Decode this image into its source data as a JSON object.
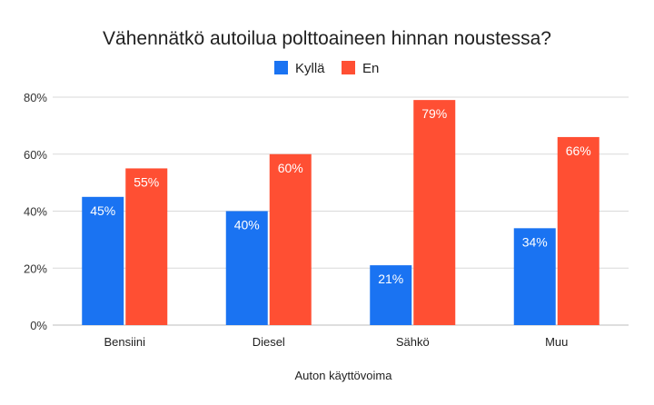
{
  "chart_data": {
    "type": "bar",
    "title": "Vähennätkö autoilua polttoaineen hinnan noustessa?",
    "xlabel": "Auton käyttövoima",
    "ylabel": "",
    "categories": [
      "Bensiini",
      "Diesel",
      "Sähkö",
      "Muu"
    ],
    "series": [
      {
        "name": "Kyllä",
        "color": "#1a73f2",
        "values": [
          45,
          40,
          21,
          34
        ],
        "labels": [
          "45%",
          "40%",
          "21%",
          "34%"
        ]
      },
      {
        "name": "En",
        "color": "#ff4f33",
        "values": [
          55,
          60,
          79,
          66
        ],
        "labels": [
          "55%",
          "60%",
          "79%",
          "66%"
        ]
      }
    ],
    "ylim": [
      0,
      80
    ],
    "yticks": [
      0,
      20,
      40,
      60,
      80
    ],
    "ytick_labels": [
      "0%",
      "20%",
      "40%",
      "60%",
      "80%"
    ],
    "grid": true,
    "legend_position": "top-center"
  }
}
